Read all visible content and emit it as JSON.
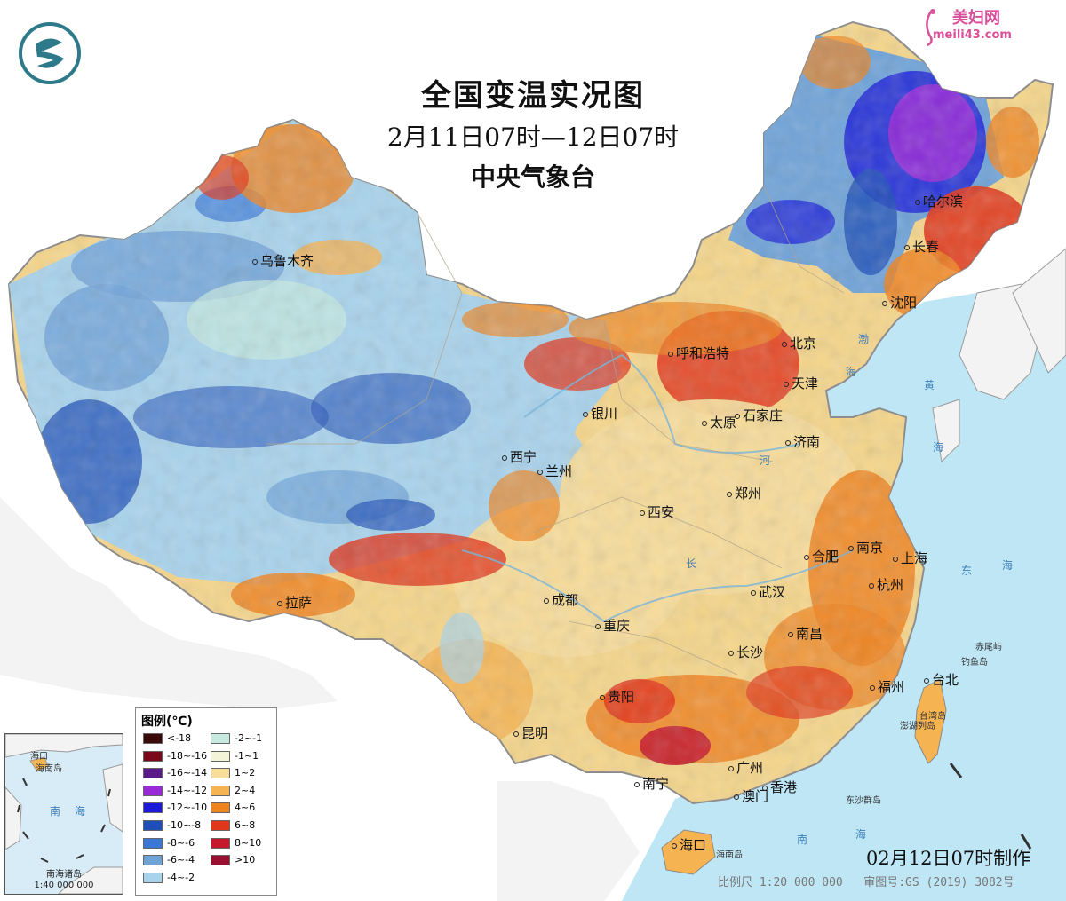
{
  "header": {
    "title": "全国变温实况图",
    "subtitle": "2月11日07时—12日07时",
    "agency": "中央气象台"
  },
  "watermark": {
    "site_name": "美妇网",
    "url": "meili43.com"
  },
  "colors": {
    "sea": "#bfe6f5",
    "land_outside": "#f3f3f3",
    "border": "#8a8a8a"
  },
  "cities": [
    {
      "name": "乌鲁木齐"
    },
    {
      "name": "哈尔滨"
    },
    {
      "name": "长春"
    },
    {
      "name": "沈阳"
    },
    {
      "name": "呼和浩特"
    },
    {
      "name": "北京"
    },
    {
      "name": "天津"
    },
    {
      "name": "银川"
    },
    {
      "name": "太原"
    },
    {
      "name": "石家庄"
    },
    {
      "name": "济南"
    },
    {
      "name": "西宁"
    },
    {
      "name": "兰州"
    },
    {
      "name": "郑州"
    },
    {
      "name": "西安"
    },
    {
      "name": "南京"
    },
    {
      "name": "上海"
    },
    {
      "name": "合肥"
    },
    {
      "name": "杭州"
    },
    {
      "name": "拉萨"
    },
    {
      "name": "成都"
    },
    {
      "name": "武汉"
    },
    {
      "name": "重庆"
    },
    {
      "name": "南昌"
    },
    {
      "name": "长沙"
    },
    {
      "name": "福州"
    },
    {
      "name": "台北"
    },
    {
      "name": "贵阳"
    },
    {
      "name": "昆明"
    },
    {
      "name": "广州"
    },
    {
      "name": "南宁"
    },
    {
      "name": "澳门"
    },
    {
      "name": "香港"
    },
    {
      "name": "海口"
    }
  ],
  "geo_labels": [
    {
      "name": "渤"
    },
    {
      "name": "海"
    },
    {
      "name": "黄"
    },
    {
      "name": "海"
    },
    {
      "name": "东"
    },
    {
      "name": "海"
    },
    {
      "name": "南"
    },
    {
      "name": "海"
    },
    {
      "name": "长"
    },
    {
      "name": "河"
    }
  ],
  "small_labels": [
    {
      "name": "赤尾屿"
    },
    {
      "name": "钓鱼岛"
    },
    {
      "name": "台湾岛"
    },
    {
      "name": "澎湖列岛"
    },
    {
      "name": "东沙群岛"
    },
    {
      "name": "海南岛"
    }
  ],
  "legend": {
    "title": "图例(℃)",
    "items": [
      {
        "label": "<-18",
        "color": "#3a0a0a"
      },
      {
        "label": "-18~-16",
        "color": "#7a0a1a"
      },
      {
        "label": "-16~-14",
        "color": "#5a1a8a"
      },
      {
        "label": "-14~-12",
        "color": "#9a2ad8"
      },
      {
        "label": "-12~-10",
        "color": "#1a1ad8"
      },
      {
        "label": "-10~-8",
        "color": "#1e4fb8"
      },
      {
        "label": "-8~-6",
        "color": "#3a78d8"
      },
      {
        "label": "-6~-4",
        "color": "#6fa3d8"
      },
      {
        "label": "-4~-2",
        "color": "#a8d3ec"
      },
      {
        "label": "-2~-1",
        "color": "#c7eae0"
      },
      {
        "label": "-1~1",
        "color": "#f4f4d8"
      },
      {
        "label": "1~2",
        "color": "#f7dc9a"
      },
      {
        "label": "2~4",
        "color": "#f5b352"
      },
      {
        "label": "4~6",
        "color": "#ee8320"
      },
      {
        "label": "6~8",
        "color": "#e0361c"
      },
      {
        "label": "8~10",
        "color": "#c41a2c"
      },
      {
        "label": ">10",
        "color": "#9a1030"
      }
    ]
  },
  "inset": {
    "labels": [
      {
        "name": "海口"
      },
      {
        "name": "海南岛"
      },
      {
        "name": "南"
      },
      {
        "name": "海"
      }
    ],
    "title": "南海诸岛",
    "scale": "1:40 000 000"
  },
  "footer": {
    "made_time": "02月12日07时制作",
    "scale": "比例尺 1:20 000 000",
    "review_no": "审图号:GS (2019) 3082号"
  }
}
